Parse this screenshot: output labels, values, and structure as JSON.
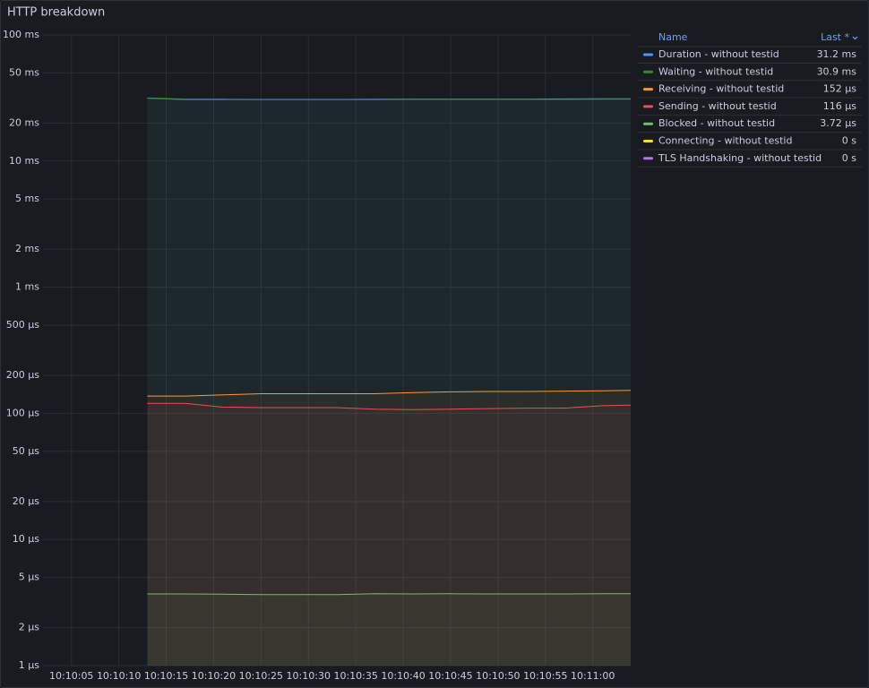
{
  "chart_data": {
    "type": "line",
    "title": "HTTP breakdown",
    "log_scale": true,
    "grid": true,
    "x": [
      "10:10:13",
      "10:10:17",
      "10:10:21",
      "10:10:25",
      "10:10:29",
      "10:10:33",
      "10:10:37",
      "10:10:41",
      "10:10:45",
      "10:10:49",
      "10:10:53",
      "10:10:57",
      "10:11:01",
      "10:11:04"
    ],
    "xlim": [
      "10:10:02",
      "10:11:04"
    ],
    "xticks": [
      "10:10:05",
      "10:10:10",
      "10:10:15",
      "10:10:20",
      "10:10:25",
      "10:10:30",
      "10:10:35",
      "10:10:40",
      "10:10:45",
      "10:10:50",
      "10:10:55",
      "10:11:00"
    ],
    "ylim": [
      1,
      100000
    ],
    "yticks": [
      {
        "value": 1,
        "label": "1 µs"
      },
      {
        "value": 2,
        "label": "2 µs"
      },
      {
        "value": 5,
        "label": "5 µs"
      },
      {
        "value": 10,
        "label": "10 µs"
      },
      {
        "value": 20,
        "label": "20 µs"
      },
      {
        "value": 50,
        "label": "50 µs"
      },
      {
        "value": 100,
        "label": "100 µs"
      },
      {
        "value": 200,
        "label": "200 µs"
      },
      {
        "value": 500,
        "label": "500 µs"
      },
      {
        "value": 1000,
        "label": "1 ms"
      },
      {
        "value": 2000,
        "label": "2 ms"
      },
      {
        "value": 5000,
        "label": "5 ms"
      },
      {
        "value": 10000,
        "label": "10 ms"
      },
      {
        "value": 20000,
        "label": "20 ms"
      },
      {
        "value": 50000,
        "label": "50 ms"
      },
      {
        "value": 100000,
        "label": "100 ms"
      }
    ],
    "legend_header": {
      "name": "Name",
      "last": "Last *"
    },
    "series": [
      {
        "name": "Duration - without testid",
        "color": "#5794f2",
        "last": "31.2 ms",
        "values": [
          31600,
          30900,
          30900,
          30800,
          30800,
          30800,
          30900,
          31000,
          31000,
          31000,
          31000,
          31100,
          31200,
          31200
        ]
      },
      {
        "name": "Waiting - without testid",
        "color": "#37872d",
        "last": "30.9 ms",
        "values": [
          31400,
          30700,
          30700,
          30600,
          30600,
          30600,
          30700,
          30800,
          30800,
          30800,
          30800,
          30800,
          30900,
          30900
        ]
      },
      {
        "name": "Receiving - without testid",
        "color": "#ff9830",
        "last": "152 µs",
        "values": [
          137,
          137,
          140,
          143,
          143,
          143,
          143,
          146,
          148,
          149,
          149,
          150,
          151,
          152
        ]
      },
      {
        "name": "Sending - without testid",
        "color": "#f2495c",
        "last": "116 µs",
        "values": [
          120,
          120,
          112,
          111,
          111,
          111,
          108,
          107,
          108,
          109,
          110,
          110,
          115,
          116
        ]
      },
      {
        "name": "Blocked - without testid",
        "color": "#73bf69",
        "last": "3.72 µs",
        "values": [
          3.7,
          3.7,
          3.68,
          3.65,
          3.65,
          3.65,
          3.72,
          3.7,
          3.71,
          3.7,
          3.7,
          3.7,
          3.72,
          3.72
        ]
      },
      {
        "name": "Connecting - without testid",
        "color": "#fade2a",
        "last": "0 s"
      },
      {
        "name": "TLS Handshaking - without testid",
        "color": "#b877d9",
        "last": "0 s"
      }
    ]
  }
}
